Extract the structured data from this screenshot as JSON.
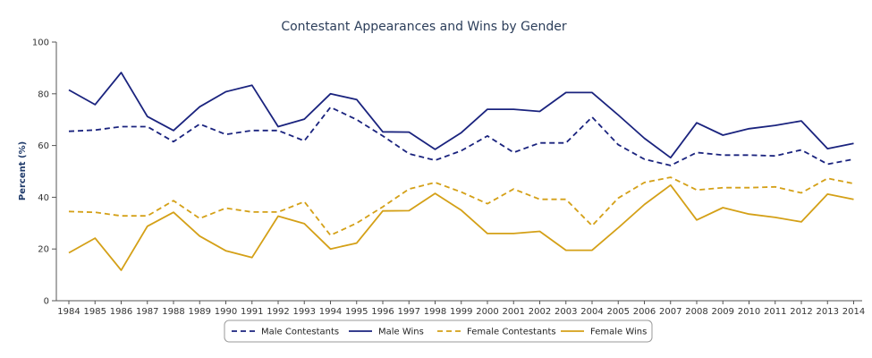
{
  "colors": {
    "male": "#1a237e",
    "female": "#d4a017",
    "axis": "#555555",
    "legend_border": "#999999"
  },
  "chart_data": {
    "type": "line",
    "title": "Contestant Appearances and Wins by Gender",
    "xlabel": "",
    "ylabel": "Percent (%)",
    "ylim": [
      0,
      100
    ],
    "yticks": [
      0,
      20,
      40,
      60,
      80,
      100
    ],
    "grid": false,
    "legend_position": "bottom-center",
    "x": [
      "1984",
      "1985",
      "1986",
      "1987",
      "1988",
      "1989",
      "1990",
      "1991",
      "1992",
      "1993",
      "1994",
      "1995",
      "1996",
      "1997",
      "1998",
      "1999",
      "2000",
      "2001",
      "2002",
      "2003",
      "2004",
      "2005",
      "2006",
      "2007",
      "2008",
      "2009",
      "2010",
      "2011",
      "2012",
      "2013",
      "2014"
    ],
    "series": [
      {
        "name": "Male Contestants",
        "style": "dashed",
        "color": "#1a237e",
        "values": [
          65.5,
          66,
          67.3,
          67.3,
          61.5,
          68.3,
          64.3,
          65.8,
          65.8,
          61.8,
          74.8,
          70,
          63.7,
          56.8,
          54.3,
          58,
          63.7,
          57.3,
          61,
          61,
          71,
          60.3,
          54.7,
          52.3,
          57.3,
          56.3,
          56.3,
          56,
          58.3,
          52.8,
          54.7
        ]
      },
      {
        "name": "Male Wins",
        "style": "solid",
        "color": "#1a237e",
        "values": [
          81.5,
          75.8,
          88.2,
          71.2,
          65.8,
          75,
          80.8,
          83.3,
          67.3,
          70.2,
          80,
          77.8,
          65.3,
          65.2,
          58.5,
          65,
          74,
          74,
          73.2,
          80.5,
          80.5,
          71.8,
          62.8,
          55.3,
          68.8,
          64,
          66.5,
          67.8,
          69.5,
          58.8,
          60.8
        ]
      },
      {
        "name": "Female Contestants",
        "style": "dashed",
        "color": "#d4a017",
        "values": [
          34.5,
          34.2,
          32.8,
          32.8,
          38.7,
          31.8,
          35.8,
          34.3,
          34.3,
          38.3,
          25.3,
          30,
          36.3,
          43.2,
          45.7,
          42,
          37.5,
          43.2,
          39.2,
          39.2,
          29,
          39.7,
          45.7,
          47.7,
          42.8,
          43.7,
          43.7,
          44,
          41.7,
          47.3,
          45.3
        ]
      },
      {
        "name": "Female Wins",
        "style": "solid",
        "color": "#d4a017",
        "values": [
          18.5,
          24.2,
          11.8,
          28.8,
          34.2,
          25,
          19.3,
          16.7,
          32.7,
          29.8,
          20,
          22.3,
          34.7,
          34.8,
          41.5,
          35,
          26,
          26,
          26.8,
          19.5,
          19.5,
          28.2,
          37.2,
          44.7,
          31.2,
          36,
          33.5,
          32.2,
          30.5,
          41.2,
          39.2
        ]
      }
    ]
  }
}
